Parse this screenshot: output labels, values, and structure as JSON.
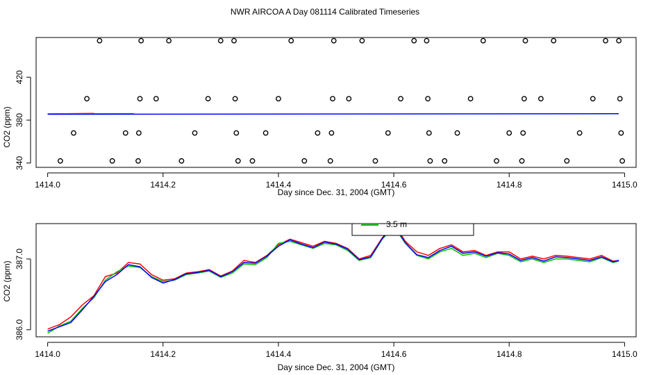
{
  "figure": {
    "title": "NWR AIRCOA A  Day 081114  Calibrated Timeseries"
  },
  "chart_data": [
    {
      "type": "scatter",
      "xlabel": "Day since Dec. 31, 2004 (GMT)",
      "ylabel": "CO2 (ppm)",
      "xlim": [
        1413.98,
        1415.02
      ],
      "ylim": [
        336,
        457
      ],
      "x_ticks": [
        "1414.0",
        "1414.2",
        "1414.4",
        "1414.6",
        "1414.8",
        "1415.0"
      ],
      "y_ticks": [
        "340",
        "380",
        "420"
      ],
      "points": [
        [
          1414.022,
          342
        ],
        [
          1414.045,
          368
        ],
        [
          1414.068,
          400
        ],
        [
          1414.09,
          454
        ],
        [
          1414.112,
          342
        ],
        [
          1414.135,
          368
        ],
        [
          1414.157,
          342
        ],
        [
          1414.158,
          368
        ],
        [
          1414.16,
          400
        ],
        [
          1414.162,
          454
        ],
        [
          1414.188,
          400
        ],
        [
          1414.21,
          454
        ],
        [
          1414.232,
          342
        ],
        [
          1414.255,
          368
        ],
        [
          1414.278,
          400
        ],
        [
          1414.3,
          454
        ],
        [
          1414.323,
          454
        ],
        [
          1414.325,
          400
        ],
        [
          1414.327,
          368
        ],
        [
          1414.33,
          342
        ],
        [
          1414.355,
          342
        ],
        [
          1414.378,
          368
        ],
        [
          1414.4,
          400
        ],
        [
          1414.422,
          454
        ],
        [
          1414.445,
          342
        ],
        [
          1414.468,
          368
        ],
        [
          1414.49,
          342
        ],
        [
          1414.492,
          368
        ],
        [
          1414.494,
          400
        ],
        [
          1414.496,
          454
        ],
        [
          1414.522,
          400
        ],
        [
          1414.545,
          454
        ],
        [
          1414.568,
          342
        ],
        [
          1414.59,
          368
        ],
        [
          1414.612,
          400
        ],
        [
          1414.635,
          454
        ],
        [
          1414.657,
          454
        ],
        [
          1414.659,
          400
        ],
        [
          1414.661,
          368
        ],
        [
          1414.663,
          342
        ],
        [
          1414.688,
          342
        ],
        [
          1414.71,
          368
        ],
        [
          1414.733,
          400
        ],
        [
          1414.755,
          454
        ],
        [
          1414.778,
          342
        ],
        [
          1414.8,
          368
        ],
        [
          1414.822,
          342
        ],
        [
          1414.824,
          368
        ],
        [
          1414.826,
          400
        ],
        [
          1414.828,
          454
        ],
        [
          1414.855,
          400
        ],
        [
          1414.877,
          454
        ],
        [
          1414.9,
          342
        ],
        [
          1414.922,
          368
        ],
        [
          1414.945,
          400
        ],
        [
          1414.967,
          454
        ],
        [
          1414.99,
          454
        ],
        [
          1414.992,
          400
        ],
        [
          1414.994,
          368
        ],
        [
          1414.996,
          342
        ]
      ],
      "series": [
        {
          "color": "#ff0000",
          "x": [
            1414.0,
            1414.08
          ],
          "y": [
            385.8,
            386.3
          ]
        },
        {
          "color": "#00c000",
          "x": [
            1414.02,
            1414.15
          ],
          "y": [
            385.9,
            386.1
          ]
        },
        {
          "color": "#0000ff",
          "x": [
            1414.0,
            1414.99
          ],
          "y": [
            385.5,
            386.0
          ]
        }
      ]
    },
    {
      "type": "line",
      "xlabel": "Day since Dec. 31, 2004 (GMT)",
      "ylabel": "CO2 (ppm)",
      "xlim": [
        1413.98,
        1415.02
      ],
      "ylim": [
        385.9,
        387.5
      ],
      "x_ticks": [
        "1414.0",
        "1414.2",
        "1414.4",
        "1414.6",
        "1414.8",
        "1415.0"
      ],
      "y_ticks": [
        "386.0",
        "387.0"
      ],
      "legend": {
        "position": "top",
        "entries": [
          {
            "label": "3.5 m",
            "color": "#00c000"
          }
        ]
      },
      "x": [
        1414.0,
        1414.02,
        1414.04,
        1414.06,
        1414.08,
        1414.1,
        1414.12,
        1414.14,
        1414.16,
        1414.18,
        1414.2,
        1414.22,
        1414.24,
        1414.26,
        1414.28,
        1414.3,
        1414.32,
        1414.34,
        1414.36,
        1414.38,
        1414.4,
        1414.42,
        1414.44,
        1414.46,
        1414.48,
        1414.5,
        1414.52,
        1414.54,
        1414.56,
        1414.58,
        1414.6,
        1414.62,
        1414.64,
        1414.66,
        1414.68,
        1414.7,
        1414.72,
        1414.74,
        1414.76,
        1414.78,
        1414.8,
        1414.82,
        1414.84,
        1414.86,
        1414.88,
        1414.9,
        1414.92,
        1414.94,
        1414.96,
        1414.98,
        1414.99
      ],
      "series": [
        {
          "color": "#ff0000",
          "y": [
            386.01,
            386.07,
            386.18,
            386.35,
            386.48,
            386.75,
            386.8,
            386.95,
            386.93,
            386.78,
            386.7,
            386.72,
            386.8,
            386.82,
            386.85,
            386.76,
            386.83,
            386.98,
            386.95,
            387.05,
            387.2,
            387.28,
            387.23,
            387.18,
            387.25,
            387.22,
            387.15,
            387.0,
            387.05,
            387.3,
            387.5,
            387.25,
            387.1,
            387.05,
            387.15,
            387.2,
            387.1,
            387.12,
            387.05,
            387.1,
            387.1,
            387.0,
            387.04,
            387.0,
            387.05,
            387.04,
            387.02,
            387.0,
            387.05,
            386.97,
            386.98
          ]
        },
        {
          "color": "#00c000",
          "y": [
            385.95,
            386.05,
            386.12,
            386.3,
            386.45,
            386.7,
            386.82,
            386.9,
            386.88,
            386.75,
            386.68,
            386.7,
            386.78,
            386.8,
            386.83,
            386.74,
            386.8,
            386.93,
            386.92,
            387.02,
            387.22,
            387.25,
            387.2,
            387.15,
            387.22,
            387.2,
            387.12,
            386.98,
            387.02,
            387.28,
            387.46,
            387.22,
            387.05,
            387.0,
            387.1,
            387.15,
            387.05,
            387.08,
            387.02,
            387.08,
            387.05,
            386.96,
            387.0,
            386.95,
            387.0,
            387.0,
            386.98,
            386.96,
            387.02,
            386.95,
            386.97
          ]
        },
        {
          "color": "#0000ff",
          "y": [
            385.98,
            386.04,
            386.1,
            386.28,
            386.47,
            386.68,
            386.78,
            386.92,
            386.89,
            386.74,
            386.66,
            386.71,
            386.79,
            386.81,
            386.84,
            386.75,
            386.82,
            386.95,
            386.94,
            387.04,
            387.18,
            387.27,
            387.21,
            387.16,
            387.24,
            387.21,
            387.14,
            386.99,
            387.03,
            387.29,
            387.48,
            387.23,
            387.06,
            387.02,
            387.12,
            387.18,
            387.08,
            387.1,
            387.04,
            387.09,
            387.07,
            386.98,
            387.02,
            386.97,
            387.03,
            387.02,
            387.0,
            386.98,
            387.03,
            386.96,
            386.98
          ]
        }
      ]
    }
  ]
}
